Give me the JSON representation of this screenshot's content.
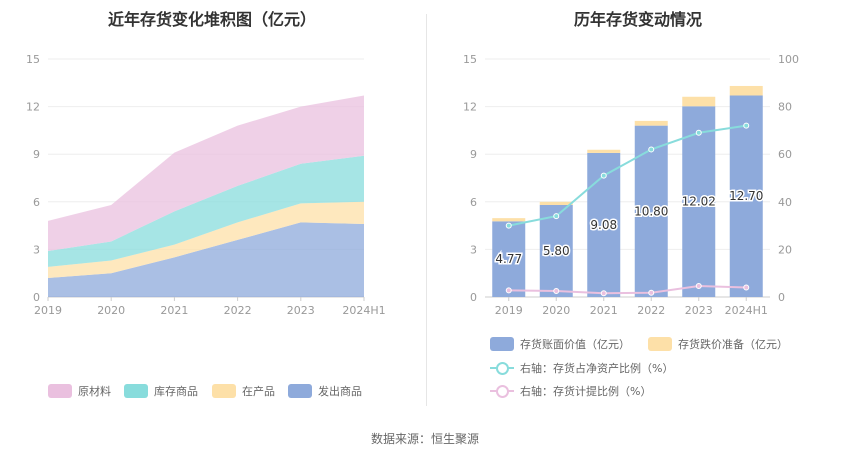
{
  "left_title": "近年存货变化堆积图（亿元）",
  "right_title": "历年存货变动情况",
  "source": "数据来源：恒生聚源",
  "chart_data": [
    {
      "type": "area",
      "stacked": true,
      "title": "近年存货变化堆积图（亿元）",
      "categories": [
        "2019",
        "2020",
        "2021",
        "2022",
        "2023",
        "2024H1"
      ],
      "ylim": [
        0,
        15
      ],
      "yticks": [
        0,
        3,
        6,
        9,
        12,
        15
      ],
      "grid": true,
      "legend_position": "bottom",
      "series": [
        {
          "name": "发出商品",
          "color": "#8eaadb",
          "values": [
            1.2,
            1.5,
            2.5,
            3.6,
            4.7,
            4.6
          ]
        },
        {
          "name": "在产品",
          "color": "#fde0a8",
          "values": [
            0.7,
            0.8,
            0.8,
            1.1,
            1.2,
            1.4
          ]
        },
        {
          "name": "库存商品",
          "color": "#88dcdc",
          "values": [
            1.0,
            1.2,
            2.1,
            2.3,
            2.5,
            2.9
          ]
        },
        {
          "name": "原材料",
          "color": "#eac0df",
          "values": [
            1.9,
            2.3,
            3.7,
            3.8,
            3.6,
            3.8
          ]
        }
      ],
      "legend_order": [
        "原材料",
        "库存商品",
        "在产品",
        "发出商品"
      ]
    },
    {
      "type": "bar",
      "stacked": true,
      "title": "历年存货变动情况",
      "categories": [
        "2019",
        "2020",
        "2021",
        "2022",
        "2023",
        "2024H1"
      ],
      "ylim": [
        0,
        15
      ],
      "yticks": [
        0,
        3,
        6,
        9,
        12,
        15
      ],
      "y2lim": [
        0,
        100
      ],
      "y2ticks": [
        0,
        20,
        40,
        60,
        80,
        100
      ],
      "grid": true,
      "legend_position": "bottom",
      "series": [
        {
          "name": "存货账面价值（亿元）",
          "color": "#8eaadb",
          "values": [
            4.77,
            5.8,
            9.08,
            10.8,
            12.02,
            12.7
          ],
          "labels": [
            "4.77",
            "5.80",
            "9.08",
            "10.80",
            "12.02",
            "12.70"
          ]
        },
        {
          "name": "存货跌价准备（亿元）",
          "color": "#fde0a8",
          "values": [
            0.2,
            0.2,
            0.2,
            0.3,
            0.6,
            0.6
          ]
        }
      ],
      "lines": [
        {
          "name": "右轴：存货占净资产比例（%）",
          "color": "#88dcdc",
          "values": [
            30,
            34,
            51,
            62,
            69,
            72
          ]
        },
        {
          "name": "右轴：存货计提比例（%）",
          "color": "#eac0df",
          "values": [
            2.8,
            2.5,
            1.6,
            1.8,
            4.6,
            4.0
          ]
        }
      ]
    }
  ]
}
